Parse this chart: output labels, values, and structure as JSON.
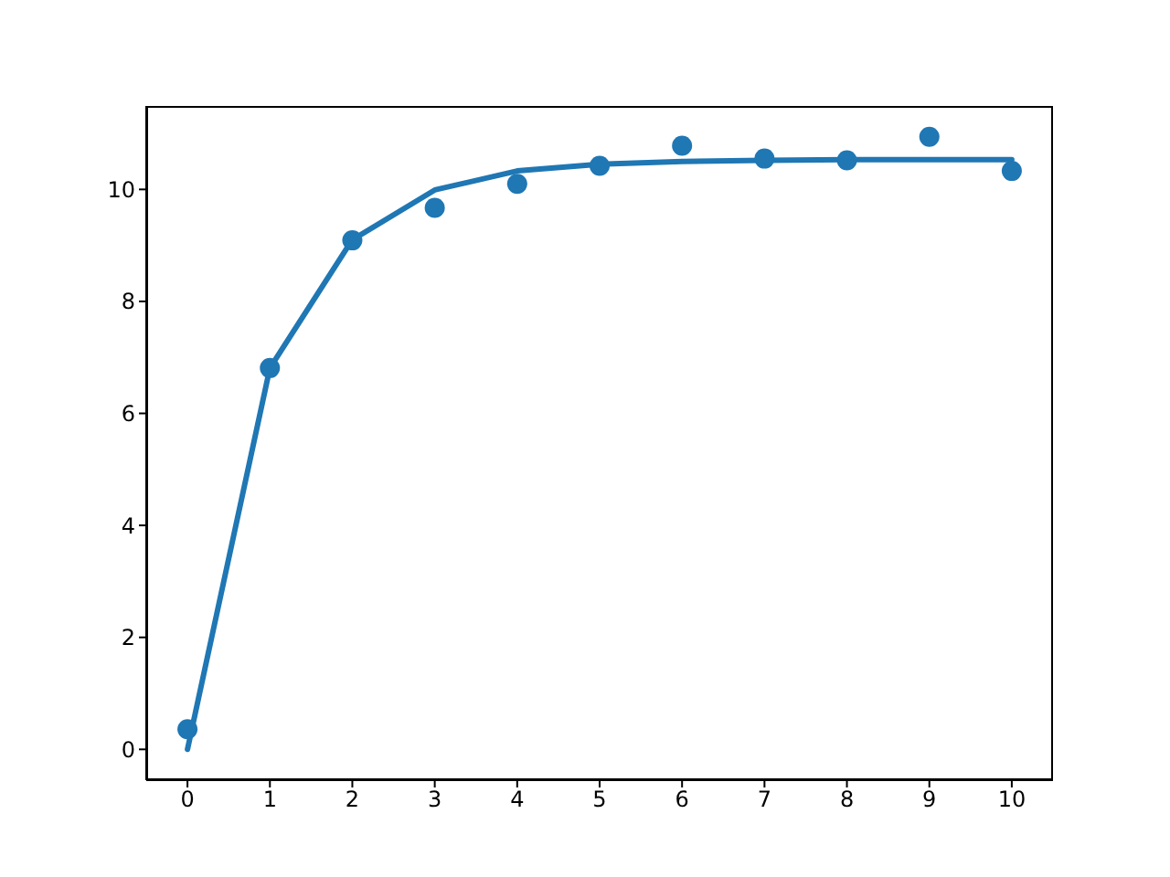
{
  "chart_data": {
    "type": "scatter",
    "xlim": [
      -0.5,
      10.5
    ],
    "ylim": [
      -0.55,
      11.49
    ],
    "xticks": [
      0,
      1,
      2,
      3,
      4,
      5,
      6,
      7,
      8,
      9,
      10
    ],
    "yticks": [
      0,
      2,
      4,
      6,
      8,
      10
    ],
    "grid": false,
    "legend": false,
    "series": [
      {
        "color": "#1f77b4",
        "marker": "circle",
        "x": [
          0,
          1,
          2,
          3,
          4,
          5,
          6,
          7,
          8,
          9,
          10
        ],
        "values": [
          0.36,
          6.81,
          9.09,
          9.67,
          10.1,
          10.42,
          10.78,
          10.55,
          10.52,
          10.94,
          10.33
        ]
      },
      {
        "type": "line",
        "color": "#1f77b4",
        "marker": "none",
        "line_style": "solid",
        "x": [
          0,
          1,
          2,
          3,
          4,
          5,
          6,
          7,
          8,
          9,
          10
        ],
        "values": [
          0,
          6.81,
          9.1,
          9.99,
          10.33,
          10.45,
          10.5,
          10.52,
          10.53,
          10.53,
          10.53
        ]
      }
    ]
  }
}
